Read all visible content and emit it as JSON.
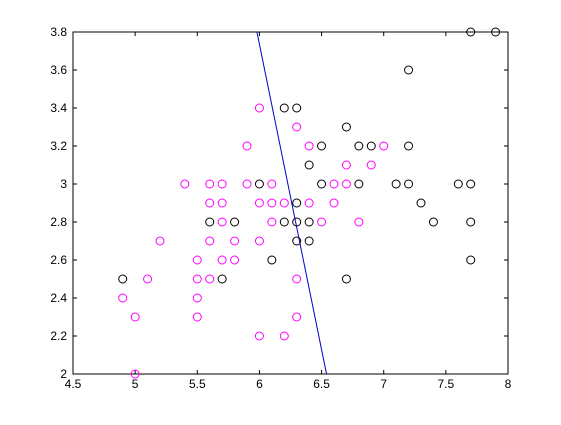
{
  "chart_data": {
    "type": "scatter",
    "title": "",
    "xlabel": "",
    "ylabel": "",
    "xlim": [
      4.5,
      8
    ],
    "ylim": [
      2,
      3.8
    ],
    "xticks": [
      "4.5",
      "5",
      "5.5",
      "6",
      "6.5",
      "7",
      "7.5",
      "8"
    ],
    "yticks": [
      "2",
      "2.2",
      "2.4",
      "2.6",
      "2.8",
      "3",
      "3.2",
      "3.4",
      "3.6",
      "3.8"
    ],
    "grid": false,
    "series": [
      {
        "marker": "circle-open",
        "color": "#000000",
        "points": [
          [
            4.9,
            2.5
          ],
          [
            5.6,
            2.8
          ],
          [
            5.7,
            2.5
          ],
          [
            5.8,
            2.8
          ],
          [
            6.0,
            3.0
          ],
          [
            6.1,
            2.6
          ],
          [
            6.2,
            3.4
          ],
          [
            6.2,
            2.8
          ],
          [
            6.3,
            3.4
          ],
          [
            6.3,
            2.9
          ],
          [
            6.3,
            2.8
          ],
          [
            6.3,
            2.7
          ],
          [
            6.4,
            3.1
          ],
          [
            6.4,
            2.8
          ],
          [
            6.4,
            2.7
          ],
          [
            6.5,
            3.2
          ],
          [
            6.5,
            3.0
          ],
          [
            6.7,
            3.3
          ],
          [
            6.7,
            2.5
          ],
          [
            6.8,
            3.2
          ],
          [
            6.8,
            3.0
          ],
          [
            6.9,
            3.2
          ],
          [
            7.1,
            3.0
          ],
          [
            7.2,
            3.6
          ],
          [
            7.2,
            3.2
          ],
          [
            7.2,
            3.0
          ],
          [
            7.3,
            2.9
          ],
          [
            7.4,
            2.8
          ],
          [
            7.6,
            3.0
          ],
          [
            7.7,
            3.8
          ],
          [
            7.7,
            3.0
          ],
          [
            7.7,
            2.8
          ],
          [
            7.7,
            2.6
          ],
          [
            7.9,
            3.8
          ]
        ]
      },
      {
        "marker": "circle-open",
        "color": "#ff00ff",
        "points": [
          [
            4.9,
            2.4
          ],
          [
            5.0,
            2.3
          ],
          [
            5.0,
            2.0
          ],
          [
            5.1,
            2.5
          ],
          [
            5.2,
            2.7
          ],
          [
            5.4,
            3.0
          ],
          [
            5.5,
            2.6
          ],
          [
            5.5,
            2.5
          ],
          [
            5.5,
            2.4
          ],
          [
            5.5,
            2.3
          ],
          [
            5.6,
            3.0
          ],
          [
            5.6,
            2.9
          ],
          [
            5.6,
            2.7
          ],
          [
            5.6,
            2.5
          ],
          [
            5.7,
            3.0
          ],
          [
            5.7,
            2.9
          ],
          [
            5.7,
            2.8
          ],
          [
            5.7,
            2.6
          ],
          [
            5.8,
            2.7
          ],
          [
            5.8,
            2.6
          ],
          [
            5.9,
            3.2
          ],
          [
            5.9,
            3.0
          ],
          [
            6.0,
            3.4
          ],
          [
            6.0,
            2.9
          ],
          [
            6.0,
            2.7
          ],
          [
            6.0,
            2.2
          ],
          [
            6.1,
            3.0
          ],
          [
            6.1,
            2.9
          ],
          [
            6.1,
            2.8
          ],
          [
            6.2,
            2.9
          ],
          [
            6.2,
            2.2
          ],
          [
            6.3,
            3.3
          ],
          [
            6.3,
            2.5
          ],
          [
            6.3,
            2.3
          ],
          [
            6.4,
            3.2
          ],
          [
            6.4,
            2.9
          ],
          [
            6.5,
            2.8
          ],
          [
            6.6,
            3.0
          ],
          [
            6.6,
            2.9
          ],
          [
            6.7,
            3.1
          ],
          [
            6.7,
            3.0
          ],
          [
            6.8,
            2.8
          ],
          [
            6.9,
            3.1
          ],
          [
            7.0,
            3.2
          ]
        ]
      }
    ],
    "line": {
      "color": "#0000cc",
      "points": [
        [
          5.98,
          3.8
        ],
        [
          6.54,
          2.0
        ]
      ]
    }
  }
}
